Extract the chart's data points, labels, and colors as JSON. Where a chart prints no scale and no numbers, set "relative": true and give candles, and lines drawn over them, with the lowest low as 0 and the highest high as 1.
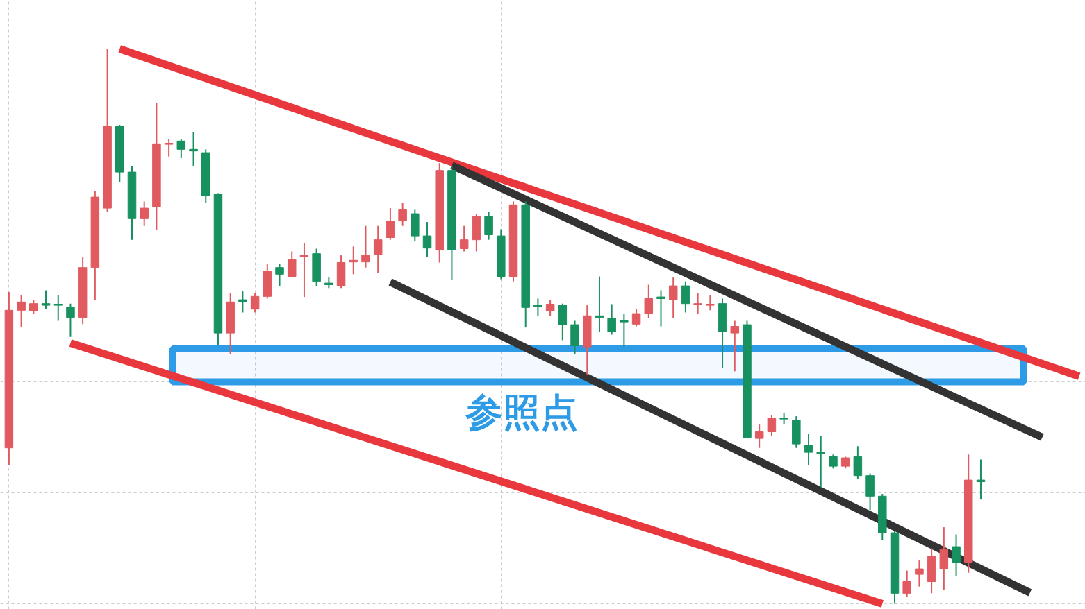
{
  "chart_data": {
    "type": "candlestick",
    "relative": true,
    "grid": true,
    "categories": [
      null,
      null,
      null,
      null,
      null,
      null,
      null,
      null,
      null,
      null,
      null,
      null,
      null,
      null,
      null,
      null,
      null,
      null,
      null,
      null,
      null,
      null,
      null,
      null,
      null,
      null,
      null,
      null,
      null,
      null,
      null,
      null,
      null,
      null,
      null,
      null,
      null,
      null,
      null,
      null,
      null,
      null,
      null,
      null,
      null,
      null,
      null,
      null,
      null,
      null,
      null,
      null,
      null,
      null,
      null,
      null,
      null,
      null,
      null,
      null,
      null,
      null,
      null,
      null,
      null,
      null,
      null,
      null,
      null,
      null,
      null,
      null,
      null,
      null,
      null,
      null,
      null,
      null,
      null,
      null,
      null,
      null,
      null,
      null,
      null,
      null,
      null,
      null
    ],
    "ohlc": [
      [
        0.281,
        0.562,
        0.25,
        0.529
      ],
      [
        0.529,
        0.556,
        0.498,
        0.544
      ],
      [
        0.528,
        0.548,
        0.522,
        0.541
      ],
      [
        0.541,
        0.565,
        0.531,
        0.538
      ],
      [
        0.54,
        0.556,
        0.51,
        0.538
      ],
      [
        0.535,
        0.541,
        0.481,
        0.516
      ],
      [
        0.516,
        0.625,
        0.504,
        0.606
      ],
      [
        0.606,
        0.744,
        0.548,
        0.733
      ],
      [
        0.713,
        1,
        0.706,
        0.86
      ],
      [
        0.86,
        0.863,
        0.76,
        0.778
      ],
      [
        0.778,
        0.788,
        0.656,
        0.694
      ],
      [
        0.694,
        0.725,
        0.681,
        0.713
      ],
      [
        0.715,
        0.903,
        0.673,
        0.829
      ],
      [
        0.828,
        0.838,
        0.806,
        0.83
      ],
      [
        0.834,
        0.838,
        0.803,
        0.819
      ],
      [
        0.819,
        0.85,
        0.788,
        0.816
      ],
      [
        0.813,
        0.819,
        0.723,
        0.735
      ],
      [
        0.738,
        0.74,
        0.466,
        0.488
      ],
      [
        0.488,
        0.56,
        0.45,
        0.544
      ],
      [
        0.548,
        0.563,
        0.525,
        0.545
      ],
      [
        0.531,
        0.56,
        0.525,
        0.554
      ],
      [
        0.554,
        0.613,
        0.55,
        0.6
      ],
      [
        0.606,
        0.613,
        0.573,
        0.594
      ],
      [
        0.59,
        0.635,
        0.588,
        0.621
      ],
      [
        0.625,
        0.65,
        0.553,
        0.628
      ],
      [
        0.631,
        0.64,
        0.573,
        0.581
      ],
      [
        0.578,
        0.588,
        0.569,
        0.575
      ],
      [
        0.573,
        0.628,
        0.569,
        0.615
      ],
      [
        0.616,
        0.644,
        0.594,
        0.619
      ],
      [
        0.616,
        0.681,
        0.606,
        0.628
      ],
      [
        0.629,
        0.681,
        0.596,
        0.656
      ],
      [
        0.66,
        0.713,
        0.656,
        0.69
      ],
      [
        0.69,
        0.723,
        0.681,
        0.71
      ],
      [
        0.703,
        0.71,
        0.653,
        0.663
      ],
      [
        0.663,
        0.688,
        0.625,
        0.641
      ],
      [
        0.638,
        0.794,
        0.615,
        0.781
      ],
      [
        0.781,
        0.788,
        0.584,
        0.638
      ],
      [
        0.64,
        0.681,
        0.635,
        0.656
      ],
      [
        0.656,
        0.703,
        0.635,
        0.698
      ],
      [
        0.698,
        0.706,
        0.656,
        0.665
      ],
      [
        0.663,
        0.675,
        0.585,
        0.59
      ],
      [
        0.59,
        0.725,
        0.581,
        0.719
      ],
      [
        0.719,
        0.725,
        0.498,
        0.534
      ],
      [
        0.538,
        0.55,
        0.519,
        0.535
      ],
      [
        0.528,
        0.548,
        0.519,
        0.54
      ],
      [
        0.538,
        0.541,
        0.475,
        0.503
      ],
      [
        0.503,
        0.51,
        0.45,
        0.465
      ],
      [
        0.463,
        0.538,
        0.413,
        0.519
      ],
      [
        0.519,
        0.59,
        0.49,
        0.516
      ],
      [
        0.515,
        0.54,
        0.485,
        0.49
      ],
      [
        0.51,
        0.523,
        0.463,
        0.508
      ],
      [
        0.504,
        0.531,
        0.5,
        0.523
      ],
      [
        0.523,
        0.575,
        0.515,
        0.55
      ],
      [
        0.553,
        0.565,
        0.5,
        0.55
      ],
      [
        0.548,
        0.588,
        0.515,
        0.573
      ],
      [
        0.573,
        0.581,
        0.525,
        0.541
      ],
      [
        0.539,
        0.56,
        0.523,
        0.541
      ],
      [
        0.538,
        0.556,
        0.529,
        0.54
      ],
      [
        0.541,
        0.55,
        0.425,
        0.49
      ],
      [
        0.488,
        0.51,
        0.419,
        0.5
      ],
      [
        0.503,
        0.51,
        0.298,
        0.3
      ],
      [
        0.298,
        0.323,
        0.281,
        0.31
      ],
      [
        0.31,
        0.34,
        0.303,
        0.335
      ],
      [
        0.335,
        0.344,
        0.323,
        0.333
      ],
      [
        0.331,
        0.338,
        0.281,
        0.288
      ],
      [
        0.285,
        0.306,
        0.25,
        0.273
      ],
      [
        0.273,
        0.303,
        0.21,
        0.27
      ],
      [
        0.265,
        0.269,
        0.244,
        0.248
      ],
      [
        0.248,
        0.265,
        0.244,
        0.263
      ],
      [
        0.265,
        0.284,
        0.225,
        0.231
      ],
      [
        0.231,
        0.235,
        0.169,
        0.194
      ],
      [
        0.194,
        0.198,
        0.115,
        0.128
      ],
      [
        0.128,
        0.131,
        0,
        0.019
      ],
      [
        0.019,
        0.06,
        0.013,
        0.04
      ],
      [
        0.053,
        0.078,
        0.031,
        0.063
      ],
      [
        0.04,
        0.1,
        0.019,
        0.085
      ],
      [
        0.063,
        0.138,
        0.025,
        0.098
      ],
      [
        0.103,
        0.125,
        0.05,
        0.075
      ],
      [
        0.075,
        0.269,
        0.056,
        0.223
      ],
      [
        0.223,
        0.26,
        0.188,
        0.22
      ],
      null,
      null,
      null,
      null,
      null,
      null,
      null,
      null
    ],
    "colors": [
      "#e05a5f",
      "#e05a5f",
      "#e05a5f",
      "#16915f",
      "#16915f",
      "#16915f",
      "#e05a5f",
      "#e05a5f",
      "#e05a5f",
      "#16915f",
      "#16915f",
      "#e05a5f",
      "#e05a5f",
      "#e05a5f",
      "#16915f",
      "#16915f",
      "#16915f",
      "#16915f",
      "#e05a5f",
      "#16915f",
      "#e05a5f",
      "#e05a5f",
      "#16915f",
      "#e05a5f",
      "#e05a5f",
      "#16915f",
      "#16915f",
      "#e05a5f",
      "#e05a5f",
      "#e05a5f",
      "#e05a5f",
      "#e05a5f",
      "#e05a5f",
      "#16915f",
      "#16915f",
      "#e05a5f",
      "#16915f",
      "#e05a5f",
      "#e05a5f",
      "#16915f",
      "#16915f",
      "#e05a5f",
      "#16915f",
      "#16915f",
      "#e05a5f",
      "#16915f",
      "#16915f",
      "#e05a5f",
      "#16915f",
      "#16915f",
      "#16915f",
      "#e05a5f",
      "#e05a5f",
      "#16915f",
      "#e05a5f",
      "#16915f",
      "#e05a5f",
      "#e05a5f",
      "#16915f",
      "#e05a5f",
      "#16915f",
      "#e05a5f",
      "#e05a5f",
      "#16915f",
      "#16915f",
      "#16915f",
      "#16915f",
      "#16915f",
      "#e05a5f",
      "#16915f",
      "#16915f",
      "#16915f",
      "#16915f",
      "#e05a5f",
      "#e05a5f",
      "#e05a5f",
      "#e05a5f",
      "#16915f",
      "#e05a5f",
      "#16915f",
      null,
      null,
      null,
      null,
      null,
      null,
      null,
      null
    ],
    "series": [
      {
        "type": "line",
        "color": "#e8383d",
        "values": [
          null,
          null,
          null,
          null,
          null,
          null,
          null,
          null,
          null,
          1.0,
          null,
          null,
          null,
          null,
          null,
          null,
          null,
          null,
          null,
          null,
          null,
          null,
          null,
          null,
          null,
          null,
          null,
          null,
          null,
          null,
          null,
          null,
          null,
          null,
          null,
          null,
          null,
          null,
          null,
          null,
          null,
          null,
          null,
          null,
          null,
          null,
          null,
          null,
          null,
          null,
          null,
          null,
          null,
          null,
          null,
          null,
          null,
          null,
          null,
          null,
          null,
          null,
          null,
          null,
          null,
          null,
          null,
          null,
          null,
          null,
          null,
          null,
          null,
          null,
          null,
          null,
          null,
          null,
          null,
          null,
          null,
          null,
          null,
          null,
          null,
          null,
          null,
          0.41
        ]
      },
      {
        "type": "line",
        "color": "#e8383d",
        "values": [
          null,
          null,
          null,
          null,
          null,
          0.47,
          null,
          null,
          null,
          null,
          null,
          null,
          null,
          null,
          null,
          null,
          null,
          null,
          null,
          null,
          null,
          null,
          null,
          null,
          null,
          null,
          null,
          null,
          null,
          null,
          null,
          null,
          null,
          null,
          null,
          null,
          null,
          null,
          null,
          null,
          null,
          null,
          null,
          null,
          null,
          null,
          null,
          null,
          null,
          null,
          null,
          null,
          null,
          null,
          null,
          null,
          null,
          null,
          null,
          null,
          null,
          null,
          null,
          null,
          null,
          null,
          null,
          null,
          null,
          null,
          null,
          0.0,
          null,
          null,
          null,
          null,
          null,
          null,
          null,
          null,
          null,
          null,
          null,
          null,
          null,
          null,
          null,
          null
        ]
      },
      {
        "type": "line",
        "color": "#333333",
        "values": [
          null,
          null,
          null,
          null,
          null,
          null,
          null,
          null,
          null,
          null,
          null,
          null,
          null,
          null,
          null,
          null,
          null,
          null,
          null,
          null,
          null,
          null,
          null,
          null,
          null,
          null,
          null,
          null,
          null,
          null,
          null,
          null,
          null,
          null,
          null,
          null,
          0.79,
          null,
          null,
          null,
          null,
          null,
          null,
          null,
          null,
          null,
          null,
          null,
          null,
          null,
          null,
          null,
          null,
          null,
          null,
          null,
          null,
          null,
          null,
          null,
          null,
          null,
          null,
          null,
          null,
          null,
          null,
          null,
          null,
          null,
          null,
          null,
          null,
          null,
          null,
          null,
          null,
          null,
          null,
          null,
          null,
          null,
          null,
          null,
          0.3,
          null,
          null,
          null
        ]
      },
      {
        "type": "line",
        "color": "#333333",
        "values": [
          null,
          null,
          null,
          null,
          null,
          null,
          null,
          null,
          null,
          null,
          null,
          null,
          null,
          null,
          null,
          null,
          null,
          null,
          null,
          null,
          null,
          null,
          null,
          null,
          null,
          null,
          null,
          null,
          null,
          null,
          null,
          0.58,
          null,
          null,
          null,
          null,
          null,
          null,
          null,
          null,
          null,
          null,
          null,
          null,
          null,
          null,
          null,
          null,
          null,
          null,
          null,
          null,
          null,
          null,
          null,
          null,
          null,
          null,
          null,
          null,
          null,
          null,
          null,
          null,
          null,
          null,
          null,
          null,
          null,
          null,
          null,
          null,
          null,
          null,
          null,
          null,
          null,
          null,
          null,
          null,
          null,
          null,
          null,
          0.02,
          null,
          null,
          null,
          null
        ]
      }
    ],
    "bands": [
      {
        "axis": "y",
        "from": 0.4,
        "to": 0.46,
        "color": "#2e9be6",
        "label": "参照点"
      }
    ]
  }
}
